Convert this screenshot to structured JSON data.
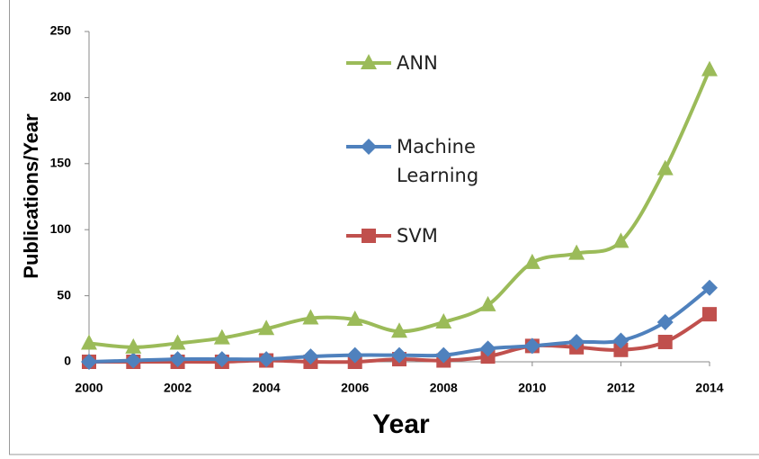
{
  "chart_data": {
    "type": "line",
    "x_label": "Year",
    "y_label": "Publications/Year",
    "x": [
      2000,
      2001,
      2002,
      2003,
      2004,
      2005,
      2006,
      2007,
      2008,
      2009,
      2010,
      2011,
      2012,
      2013,
      2014
    ],
    "series": [
      {
        "name": "ANN",
        "color": "#9bbb59",
        "marker": "triangle",
        "values": [
          14,
          11,
          14,
          18,
          25,
          33,
          32,
          23,
          30,
          43,
          75,
          82,
          91,
          146,
          221
        ]
      },
      {
        "name": "Machine Learning",
        "color": "#4f81bd",
        "marker": "diamond",
        "values": [
          0,
          1,
          2,
          2,
          2,
          4,
          5,
          5,
          5,
          10,
          12,
          15,
          16,
          30,
          56
        ]
      },
      {
        "name": "SVM",
        "color": "#c0504d",
        "marker": "square",
        "values": [
          0,
          0,
          0,
          0,
          1,
          0,
          0,
          2,
          1,
          4,
          12,
          11,
          9,
          15,
          36
        ]
      }
    ],
    "xlim": [
      2000,
      2014
    ],
    "xticks": [
      2000,
      2002,
      2004,
      2006,
      2008,
      2010,
      2012,
      2014
    ],
    "ylim": [
      0,
      250
    ],
    "yticks": [
      0,
      50,
      100,
      150,
      200,
      250
    ],
    "smooth": true
  }
}
